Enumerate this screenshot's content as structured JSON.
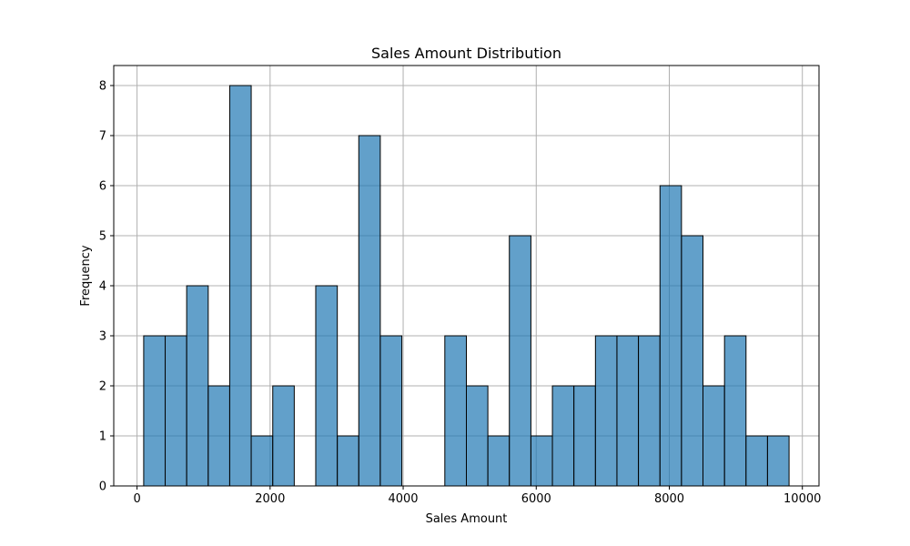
{
  "chart_data": {
    "type": "bar",
    "title": "Sales Amount Distribution",
    "xlabel": "Sales Amount",
    "ylabel": "Frequency",
    "bins": [
      {
        "x0": 100,
        "x1": 423,
        "count": 3
      },
      {
        "x0": 423,
        "x1": 746,
        "count": 3
      },
      {
        "x0": 746,
        "x1": 1070,
        "count": 4
      },
      {
        "x0": 1070,
        "x1": 1393,
        "count": 2
      },
      {
        "x0": 1393,
        "x1": 1716,
        "count": 8
      },
      {
        "x0": 1716,
        "x1": 2040,
        "count": 1
      },
      {
        "x0": 2040,
        "x1": 2363,
        "count": 2
      },
      {
        "x0": 2363,
        "x1": 2686,
        "count": 0
      },
      {
        "x0": 2686,
        "x1": 3010,
        "count": 4
      },
      {
        "x0": 3010,
        "x1": 3333,
        "count": 1
      },
      {
        "x0": 3333,
        "x1": 3656,
        "count": 7
      },
      {
        "x0": 3656,
        "x1": 3980,
        "count": 3
      },
      {
        "x0": 3980,
        "x1": 4303,
        "count": 0
      },
      {
        "x0": 4303,
        "x1": 4626,
        "count": 0
      },
      {
        "x0": 4626,
        "x1": 4950,
        "count": 3
      },
      {
        "x0": 4950,
        "x1": 5273,
        "count": 2
      },
      {
        "x0": 5273,
        "x1": 5596,
        "count": 1
      },
      {
        "x0": 5596,
        "x1": 5920,
        "count": 5
      },
      {
        "x0": 5920,
        "x1": 6243,
        "count": 1
      },
      {
        "x0": 6243,
        "x1": 6566,
        "count": 2
      },
      {
        "x0": 6566,
        "x1": 6890,
        "count": 2
      },
      {
        "x0": 6890,
        "x1": 7213,
        "count": 3
      },
      {
        "x0": 7213,
        "x1": 7536,
        "count": 3
      },
      {
        "x0": 7536,
        "x1": 7860,
        "count": 3
      },
      {
        "x0": 7860,
        "x1": 8183,
        "count": 6
      },
      {
        "x0": 8183,
        "x1": 8506,
        "count": 5
      },
      {
        "x0": 8506,
        "x1": 8830,
        "count": 2
      },
      {
        "x0": 8830,
        "x1": 9153,
        "count": 3
      },
      {
        "x0": 9153,
        "x1": 9476,
        "count": 1
      },
      {
        "x0": 9476,
        "x1": 9800,
        "count": 1
      }
    ],
    "xlim": [
      -350,
      10250
    ],
    "ylim": [
      0,
      8.4
    ],
    "xticks": [
      0,
      2000,
      4000,
      6000,
      8000,
      10000
    ],
    "xtick_labels": [
      "0",
      "2000",
      "4000",
      "6000",
      "8000",
      "10000"
    ],
    "yticks": [
      0,
      1,
      2,
      3,
      4,
      5,
      6,
      7,
      8
    ],
    "ytick_labels": [
      "0",
      "1",
      "2",
      "3",
      "4",
      "5",
      "6",
      "7",
      "8"
    ],
    "grid": true,
    "bar_color": "#1f77b4",
    "bar_opacity": 0.7,
    "edge_color": "#000000"
  }
}
